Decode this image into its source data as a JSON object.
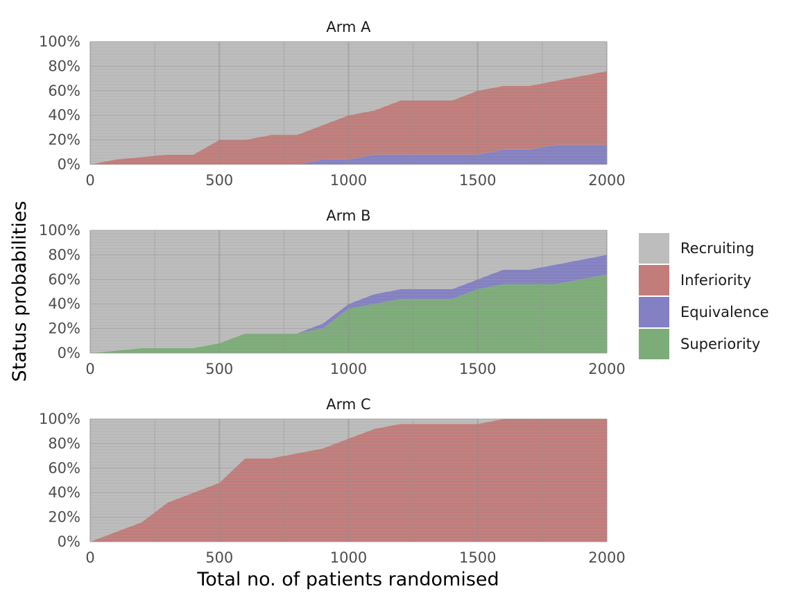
{
  "chart_data": {
    "type": "area",
    "stacked": true,
    "xlabel": "Total no. of patients randomised",
    "ylabel": "Status probabilities",
    "xlim": [
      0,
      2000
    ],
    "ylim": [
      0,
      100
    ],
    "x_ticks": [
      "0",
      "500",
      "1000",
      "1500",
      "2000"
    ],
    "y_ticks": [
      "0%",
      "20%",
      "40%",
      "60%",
      "80%",
      "100%"
    ],
    "x_tick_values": [
      0,
      500,
      1000,
      1500,
      2000
    ],
    "y_tick_values": [
      0,
      20,
      40,
      60,
      80,
      100
    ],
    "legend": {
      "position": "right",
      "entries": [
        {
          "key": "recruiting",
          "label": "Recruiting",
          "color": "#bdbdbd"
        },
        {
          "key": "inferiority",
          "label": "Inferiority",
          "color": "#c27c7a"
        },
        {
          "key": "equivalence",
          "label": "Equivalence",
          "color": "#8380c4"
        },
        {
          "key": "superiority",
          "label": "Superiority",
          "color": "#7cad78"
        }
      ]
    },
    "x": [
      0,
      100,
      200,
      300,
      400,
      500,
      600,
      700,
      800,
      900,
      1000,
      1100,
      1200,
      1300,
      1400,
      1500,
      1600,
      1700,
      1800,
      1900,
      2000
    ],
    "panels": [
      {
        "title": "Arm A",
        "series": [
          {
            "name": "Superiority",
            "values": [
              0,
              0,
              0,
              0,
              0,
              0,
              0,
              0,
              0,
              0,
              0,
              0,
              0,
              0,
              0,
              0,
              0,
              0,
              0,
              0,
              0
            ]
          },
          {
            "name": "Equivalence",
            "values": [
              0,
              0,
              0,
              0,
              0,
              0,
              0,
              0,
              0,
              4,
              4,
              8,
              8,
              8,
              8,
              8,
              12,
              12,
              16,
              16,
              16
            ]
          },
          {
            "name": "Inferiority",
            "values": [
              0,
              4,
              6,
              8,
              8,
              20,
              20,
              24,
              24,
              28,
              36,
              36,
              44,
              44,
              44,
              52,
              52,
              52,
              52,
              56,
              60
            ]
          },
          {
            "name": "Recruiting",
            "values": [
              100,
              96,
              94,
              92,
              92,
              80,
              80,
              76,
              76,
              68,
              60,
              56,
              48,
              48,
              48,
              40,
              36,
              36,
              32,
              28,
              24
            ]
          }
        ]
      },
      {
        "title": "Arm B",
        "series": [
          {
            "name": "Superiority",
            "values": [
              0,
              2,
              4,
              4,
              4,
              8,
              16,
              16,
              16,
              20,
              36,
              40,
              44,
              44,
              44,
              52,
              56,
              56,
              56,
              60,
              64
            ]
          },
          {
            "name": "Equivalence",
            "values": [
              0,
              0,
              0,
              0,
              0,
              0,
              0,
              0,
              0,
              4,
              4,
              8,
              8,
              8,
              8,
              8,
              12,
              12,
              16,
              16,
              16
            ]
          },
          {
            "name": "Inferiority",
            "values": [
              0,
              0,
              0,
              0,
              0,
              0,
              0,
              0,
              0,
              0,
              0,
              0,
              0,
              0,
              0,
              0,
              0,
              0,
              0,
              0,
              0
            ]
          },
          {
            "name": "Recruiting",
            "values": [
              100,
              98,
              96,
              96,
              96,
              92,
              84,
              84,
              84,
              76,
              60,
              52,
              48,
              48,
              48,
              40,
              32,
              32,
              28,
              24,
              20
            ]
          }
        ]
      },
      {
        "title": "Arm C",
        "series": [
          {
            "name": "Superiority",
            "values": [
              0,
              0,
              0,
              0,
              0,
              0,
              0,
              0,
              0,
              0,
              0,
              0,
              0,
              0,
              0,
              0,
              0,
              0,
              0,
              0,
              0
            ]
          },
          {
            "name": "Equivalence",
            "values": [
              0,
              0,
              0,
              0,
              0,
              0,
              0,
              0,
              0,
              0,
              0,
              0,
              0,
              0,
              0,
              0,
              0,
              0,
              0,
              0,
              0
            ]
          },
          {
            "name": "Inferiority",
            "values": [
              0,
              8,
              16,
              32,
              40,
              48,
              68,
              68,
              72,
              76,
              84,
              92,
              96,
              96,
              96,
              96,
              100,
              100,
              100,
              100,
              100
            ]
          },
          {
            "name": "Recruiting",
            "values": [
              100,
              92,
              84,
              68,
              60,
              52,
              32,
              32,
              28,
              24,
              16,
              8,
              4,
              4,
              4,
              4,
              0,
              0,
              0,
              0,
              0
            ]
          }
        ]
      }
    ]
  }
}
